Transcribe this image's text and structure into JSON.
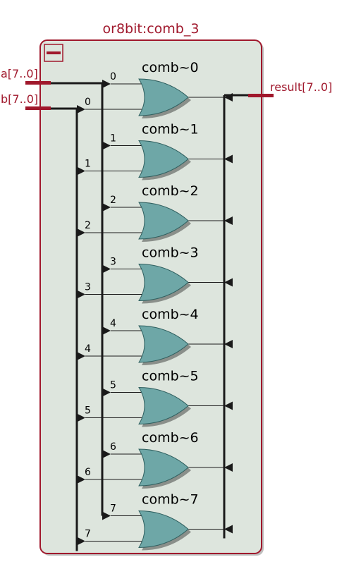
{
  "block": {
    "title": "or8bit:comb_3",
    "collapse_icon": "minus-icon",
    "colors": {
      "frame": "#a0182c",
      "fill": "#dde5dd",
      "gate_fill": "#6ea7a7",
      "gate_shadow": "#8a8f8a",
      "wire": "#1a1a1a"
    }
  },
  "ports": {
    "input_a": "a[7..0]",
    "input_b": "b[7..0]",
    "output": "result[7..0]"
  },
  "gates": [
    {
      "name": "comb~0",
      "a_bit": "0",
      "b_bit": "0"
    },
    {
      "name": "comb~1",
      "a_bit": "1",
      "b_bit": "1"
    },
    {
      "name": "comb~2",
      "a_bit": "2",
      "b_bit": "2"
    },
    {
      "name": "comb~3",
      "a_bit": "3",
      "b_bit": "3"
    },
    {
      "name": "comb~4",
      "a_bit": "4",
      "b_bit": "4"
    },
    {
      "name": "comb~5",
      "a_bit": "5",
      "b_bit": "5"
    },
    {
      "name": "comb~6",
      "a_bit": "6",
      "b_bit": "6"
    },
    {
      "name": "comb~7",
      "a_bit": "7",
      "b_bit": "7"
    }
  ]
}
